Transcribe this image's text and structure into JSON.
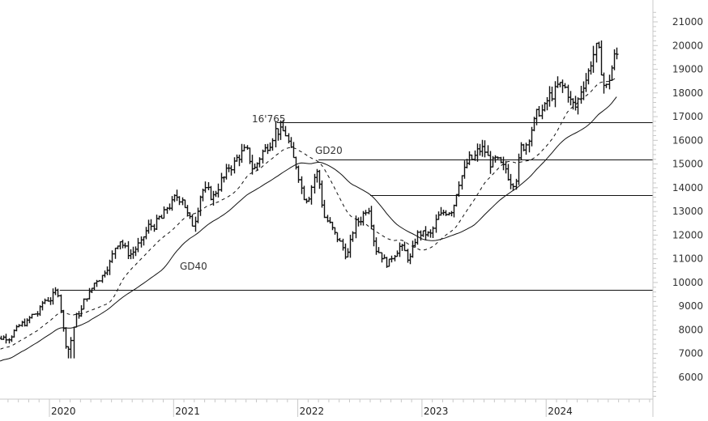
{
  "chart_data": {
    "type": "ohlc-line",
    "title": "",
    "xlabel": "",
    "ylabel": "",
    "ylim": [
      5000,
      21500
    ],
    "y_ticks": [
      6000,
      7000,
      8000,
      9000,
      10000,
      11000,
      12000,
      13000,
      14000,
      15000,
      16000,
      17000,
      18000,
      19000,
      20000,
      21000
    ],
    "x_ticks": [
      "2020",
      "2021",
      "2022",
      "2023",
      "2024"
    ],
    "grid": false,
    "legend": null,
    "price_series_monthly_close": {
      "x": [
        "2019-08",
        "2019-09",
        "2019-10",
        "2019-11",
        "2019-12",
        "2020-01",
        "2020-02",
        "2020-03",
        "2020-04",
        "2020-05",
        "2020-06",
        "2020-07",
        "2020-08",
        "2020-09",
        "2020-10",
        "2020-11",
        "2020-12",
        "2021-01",
        "2021-02",
        "2021-03",
        "2021-04",
        "2021-05",
        "2021-06",
        "2021-07",
        "2021-08",
        "2021-09",
        "2021-10",
        "2021-11",
        "2021-12",
        "2022-01",
        "2022-02",
        "2022-03",
        "2022-04",
        "2022-05",
        "2022-06",
        "2022-07",
        "2022-08",
        "2022-09",
        "2022-10",
        "2022-11",
        "2022-12",
        "2023-01",
        "2023-02",
        "2023-03",
        "2023-04",
        "2023-05",
        "2023-06",
        "2023-07",
        "2023-08",
        "2023-09",
        "2023-10",
        "2023-11",
        "2023-12",
        "2024-01",
        "2024-02",
        "2024-03",
        "2024-04",
        "2024-05",
        "2024-06",
        "2024-07",
        "2024-08"
      ],
      "values": [
        7600,
        7700,
        8000,
        8300,
        8700,
        9300,
        9600,
        7200,
        8700,
        9500,
        10200,
        10800,
        11800,
        11200,
        11600,
        12400,
        12700,
        13300,
        13600,
        12500,
        13900,
        13600,
        14400,
        15000,
        15500,
        14800,
        15600,
        16400,
        16300,
        15000,
        13600,
        14600,
        12600,
        11900,
        11200,
        12600,
        13200,
        11300,
        10800,
        11500,
        11000,
        12100,
        12000,
        12800,
        13100,
        14500,
        15200,
        15600,
        15000,
        14800,
        14300,
        15800,
        16700,
        17300,
        18000,
        18200,
        17400,
        18600,
        19800,
        18200,
        19600
      ]
    },
    "moving_averages": [
      {
        "name": "GD20",
        "style": "dashed"
      },
      {
        "name": "GD40",
        "style": "solid"
      }
    ],
    "annotations": [
      {
        "text": "16'765",
        "kind": "resistance-level",
        "value": 16765
      },
      {
        "text": "GD20",
        "kind": "series-label"
      },
      {
        "text": "GD40",
        "kind": "series-label"
      }
    ],
    "horizontal_lines": [
      {
        "value": 16765,
        "from": "2021-11"
      },
      {
        "value": 15200,
        "from": "2022-03"
      },
      {
        "value": 13700,
        "from": "2022-08"
      },
      {
        "value": 9700,
        "from": "2020-02"
      }
    ],
    "period_high": 20700,
    "period_low": 6800,
    "last_value": 19700
  },
  "labels": {
    "resistance": "16'765",
    "gd20": "GD20",
    "gd40": "GD40"
  },
  "colors": {
    "price": "#111111",
    "ma": "#111111",
    "axis": "#c8c8c8",
    "text": "#333333",
    "background": "#ffffff"
  }
}
